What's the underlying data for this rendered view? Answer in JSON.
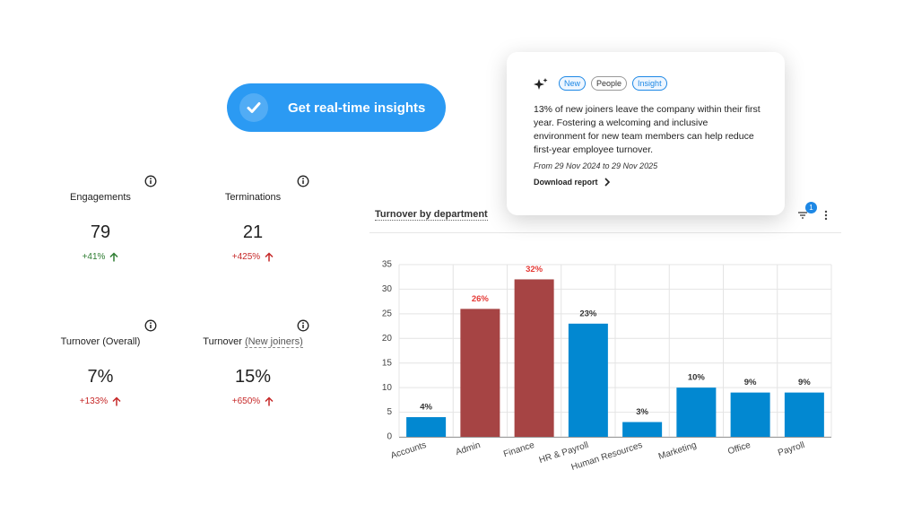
{
  "button": {
    "label": "Get real-time insights"
  },
  "kpis": [
    {
      "title": "Engagements",
      "value": "79",
      "change": "+41%",
      "color": "#2e7d32"
    },
    {
      "title": "Terminations",
      "value": "21",
      "change": "+425%",
      "color": "#c62828"
    },
    {
      "title": "Turnover (Overall)",
      "value": "7%",
      "change": "+133%",
      "color": "#c62828"
    },
    {
      "title": "Turnover",
      "title_link": "(New joiners)",
      "value": "15%",
      "change": "+650%",
      "color": "#c62828"
    }
  ],
  "insight_card": {
    "tags": [
      "New",
      "People",
      "Insight"
    ],
    "text": "13% of new joiners leave the company within their first year. Fostering a welcoming and inclusive environment for new team members can help reduce first-year employee turnover.",
    "date_range": "From 29 Nov 2024 to 29 Nov 2025",
    "link": "Download report"
  },
  "filter_badge": "1",
  "chart_data": {
    "type": "bar",
    "title": "Turnover by department",
    "categories": [
      "Accounts",
      "Admin",
      "Finance",
      "HR & Payroll",
      "Human Resources",
      "Marketing",
      "Office",
      "Payroll"
    ],
    "values": [
      4,
      26,
      32,
      23,
      3,
      10,
      9,
      9
    ],
    "value_labels": [
      "4%",
      "26%",
      "32%",
      "23%",
      "3%",
      "10%",
      "9%",
      "9%"
    ],
    "colors": [
      "#0288d1",
      "#a64444",
      "#a64444",
      "#0288d1",
      "#0288d1",
      "#0288d1",
      "#0288d1",
      "#0288d1"
    ],
    "value_label_colors": [
      "#333333",
      "#e53935",
      "#e53935",
      "#333333",
      "#333333",
      "#333333",
      "#333333",
      "#333333"
    ],
    "ylim": [
      0,
      35
    ],
    "yticks": [
      0,
      5,
      10,
      15,
      20,
      25,
      30,
      35
    ],
    "grid": true
  }
}
